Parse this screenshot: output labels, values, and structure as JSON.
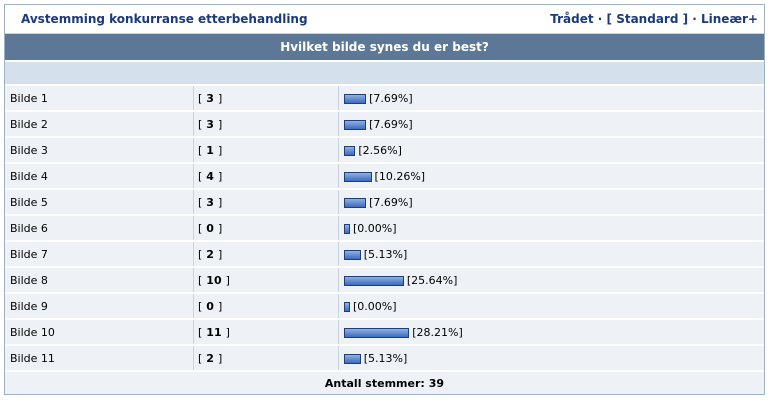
{
  "header": {
    "title": "Avstemming konkurranse etterbehandling",
    "nav": [
      "Trådet",
      " · [ ",
      "Standard",
      " ] · ",
      "Lineær+"
    ]
  },
  "poll": {
    "question": "Hvilket bilde synes du er best?",
    "vote_brackets": [
      "[",
      "]"
    ],
    "rows": [
      {
        "option": "Bilde 1",
        "votes": 3,
        "percent": 7.69,
        "percent_label": "[7.69%]"
      },
      {
        "option": "Bilde 2",
        "votes": 3,
        "percent": 7.69,
        "percent_label": "[7.69%]"
      },
      {
        "option": "Bilde 3",
        "votes": 1,
        "percent": 2.56,
        "percent_label": "[2.56%]"
      },
      {
        "option": "Bilde 4",
        "votes": 4,
        "percent": 10.26,
        "percent_label": "[10.26%]"
      },
      {
        "option": "Bilde 5",
        "votes": 3,
        "percent": 7.69,
        "percent_label": "[7.69%]"
      },
      {
        "option": "Bilde 6",
        "votes": 0,
        "percent": 0,
        "percent_label": "[0.00%]"
      },
      {
        "option": "Bilde 7",
        "votes": 2,
        "percent": 5.13,
        "percent_label": "[5.13%]"
      },
      {
        "option": "Bilde 8",
        "votes": 10,
        "percent": 25.64,
        "percent_label": "[25.64%]"
      },
      {
        "option": "Bilde 9",
        "votes": 0,
        "percent": 0,
        "percent_label": "[0.00%]"
      },
      {
        "option": "Bilde 10",
        "votes": 11,
        "percent": 28.21,
        "percent_label": "[28.21%]"
      },
      {
        "option": "Bilde 11",
        "votes": 2,
        "percent": 5.13,
        "percent_label": "[5.13%]"
      }
    ],
    "total_label": "Antall stemmer:",
    "total": 39
  }
}
